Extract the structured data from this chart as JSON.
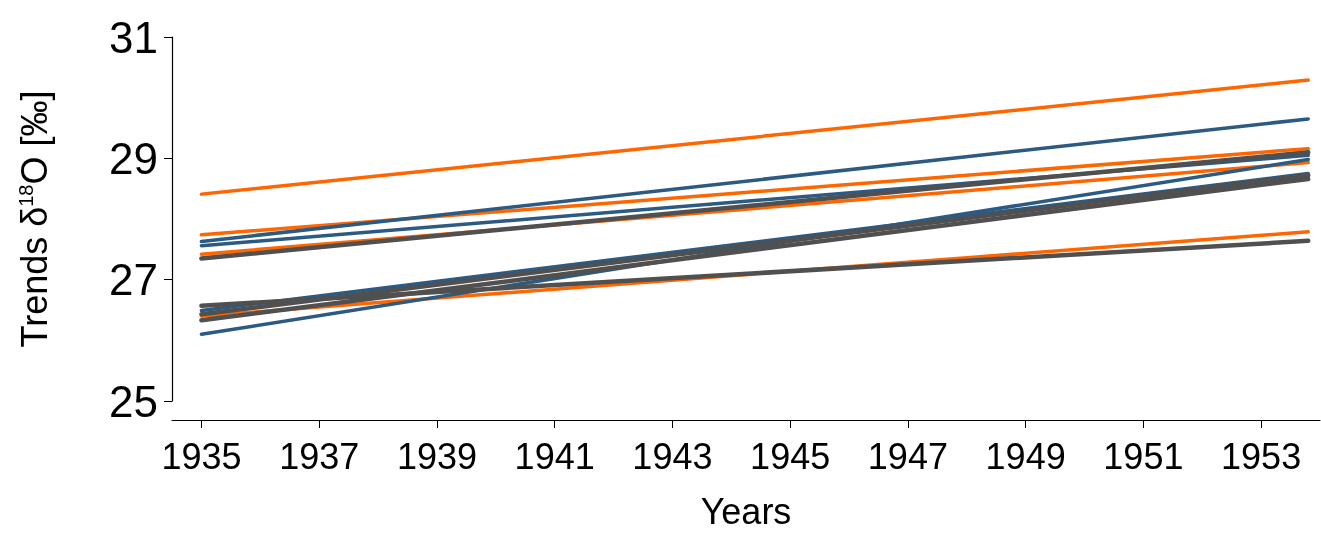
{
  "chart_data": {
    "type": "line",
    "xlabel": "Years",
    "ylabel": "Trends δ$^{18}$O [‰]",
    "xlim": [
      1934.5,
      1954
    ],
    "ylim": [
      25,
      31
    ],
    "yticks": [
      25,
      27,
      29,
      31
    ],
    "xticks": [
      1935,
      1937,
      1939,
      1941,
      1943,
      1945,
      1947,
      1949,
      1951,
      1953
    ],
    "marker": "none",
    "line_style": "solid",
    "grid": false,
    "x": [
      1935,
      1953.8
    ],
    "series": [
      {
        "color": "#ff6600",
        "values": [
          28.41,
          30.29
        ]
      },
      {
        "color": "#ff6600",
        "values": [
          27.74,
          29.16
        ]
      },
      {
        "color": "#ff6600",
        "values": [
          27.42,
          28.93
        ]
      },
      {
        "color": "#ff6600",
        "values": [
          26.4,
          27.79
        ]
      },
      {
        "color": "#2b5a82",
        "values": [
          27.63,
          29.65
        ]
      },
      {
        "color": "#2b5a82",
        "values": [
          27.56,
          29.05
        ]
      },
      {
        "color": "#2b5a82",
        "values": [
          26.49,
          28.75
        ]
      },
      {
        "color": "#2b5a82",
        "values": [
          26.1,
          28.98
        ]
      },
      {
        "color": "#505050",
        "values": [
          27.35,
          29.1
        ]
      },
      {
        "color": "#505050",
        "values": [
          26.57,
          27.64
        ]
      },
      {
        "color": "#505050",
        "values": [
          26.43,
          28.72
        ]
      },
      {
        "color": "#505050",
        "values": [
          26.33,
          28.66
        ]
      }
    ]
  }
}
